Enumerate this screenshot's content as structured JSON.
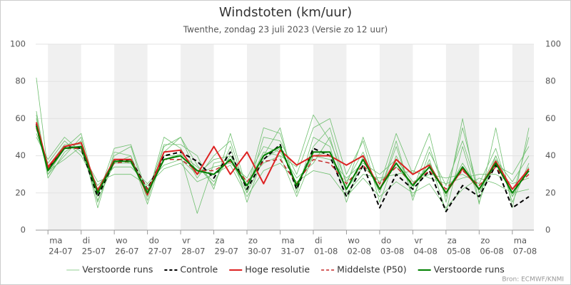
{
  "chart_data": {
    "type": "line",
    "title": "Windstoten (km/uur)",
    "subtitle": "Twenthe, zondag 23 juli 2023 (Versie zo 12 uur)",
    "credit": "Bron: ECMWF/KNMI",
    "xlim": [
      0.63,
      15.65
    ],
    "xticks": [
      {
        "value": 1,
        "label": "24-07"
      },
      {
        "value": 2,
        "label": "25-07"
      },
      {
        "value": 3,
        "label": "26-07"
      },
      {
        "value": 4,
        "label": "27-07"
      },
      {
        "value": 5,
        "label": "28-07"
      },
      {
        "value": 6,
        "label": "29-07"
      },
      {
        "value": 7,
        "label": "30-07"
      },
      {
        "value": 8,
        "label": "31-07"
      },
      {
        "value": 9,
        "label": "01-08"
      },
      {
        "value": 10,
        "label": "02-08"
      },
      {
        "value": 11,
        "label": "03-08"
      },
      {
        "value": 12,
        "label": "04-08"
      },
      {
        "value": 13,
        "label": "05-08"
      },
      {
        "value": 14,
        "label": "06-08"
      },
      {
        "value": 15,
        "label": "07-08"
      }
    ],
    "weekdays": [
      "ma",
      "di",
      "wo",
      "do",
      "vr",
      "za",
      "zo",
      "ma",
      "di",
      "wo",
      "do",
      "vr",
      "za",
      "zo",
      "ma"
    ],
    "ylim": [
      0,
      100
    ],
    "yticks": [
      0,
      20,
      40,
      60,
      80,
      100
    ],
    "grid": true,
    "legend": "bottom",
    "x": [
      0.65,
      1,
      1.5,
      2,
      2.5,
      3,
      3.5,
      4,
      4.5,
      5,
      5.5,
      6,
      6.5,
      7,
      7.5,
      8,
      8.5,
      9,
      9.5,
      10,
      10.5,
      11,
      11.5,
      12,
      12.5,
      13,
      13.5,
      14,
      14.5,
      15,
      15.5
    ],
    "series": [
      {
        "name": "Verstoorde runs",
        "color": "#6fbf6f",
        "width": 0.8,
        "runs": [
          [
            60,
            30,
            40,
            50,
            15,
            40,
            45,
            16,
            45,
            50,
            35,
            24,
            45,
            15,
            40,
            55,
            20,
            50,
            45,
            15,
            40,
            20,
            45,
            18,
            38,
            10,
            45,
            15,
            40,
            18,
            50
          ],
          [
            52,
            36,
            48,
            40,
            24,
            34,
            34,
            25,
            35,
            38,
            30,
            34,
            36,
            28,
            45,
            42,
            28,
            36,
            50,
            20,
            30,
            28,
            30,
            32,
            28,
            25,
            28,
            30,
            30,
            25,
            28
          ],
          [
            62,
            28,
            42,
            48,
            12,
            42,
            40,
            18,
            50,
            44,
            28,
            40,
            48,
            20,
            50,
            48,
            30,
            55,
            60,
            30,
            48,
            15,
            40,
            22,
            45,
            18,
            55,
            20,
            35,
            30,
            45
          ],
          [
            58,
            34,
            46,
            46,
            22,
            38,
            36,
            21,
            38,
            41,
            34,
            26,
            40,
            26,
            36,
            40,
            18,
            40,
            38,
            28,
            36,
            30,
            38,
            26,
            30,
            28,
            30,
            25,
            44,
            15,
            36
          ],
          [
            50,
            38,
            50,
            42,
            26,
            30,
            30,
            24,
            33,
            36,
            26,
            30,
            35,
            18,
            32,
            36,
            26,
            32,
            30,
            18,
            28,
            18,
            26,
            20,
            25,
            12,
            22,
            28,
            25,
            20,
            22
          ],
          [
            64,
            30,
            44,
            52,
            18,
            44,
            46,
            19,
            46,
            46,
            40,
            22,
            52,
            22,
            55,
            52,
            22,
            45,
            55,
            24,
            50,
            24,
            52,
            30,
            52,
            15,
            60,
            14,
            55,
            12,
            55
          ],
          [
            82,
            32,
            38,
            45,
            20,
            36,
            40,
            14,
            42,
            50,
            30,
            38,
            40,
            24,
            42,
            40,
            34,
            62,
            48,
            26,
            42,
            20,
            48,
            16,
            42,
            24,
            48,
            20,
            38,
            26,
            40
          ],
          [
            55,
            33,
            45,
            44,
            16,
            36,
            36,
            22,
            40,
            40,
            9,
            36,
            38,
            20,
            38,
            44,
            24,
            40,
            42,
            22,
            34,
            26,
            34,
            24,
            36,
            20,
            36,
            22,
            40,
            18,
            34
          ]
        ]
      },
      {
        "name": "Controle",
        "color": "#000000",
        "width": 2,
        "dash": true,
        "values": [
          57,
          33,
          45,
          44,
          18,
          37,
          38,
          22,
          40,
          42,
          37,
          28,
          42,
          22,
          38,
          46,
          22,
          44,
          40,
          18,
          35,
          12,
          30,
          22,
          32,
          10,
          24,
          18,
          35,
          12,
          18
        ]
      },
      {
        "name": "Hoge resolutie",
        "color": "#dd2222",
        "width": 2,
        "values": [
          58,
          34,
          45,
          47,
          21,
          38,
          38,
          19,
          42,
          43,
          30,
          45,
          30,
          42,
          25,
          43,
          35,
          40,
          40,
          35,
          40,
          22,
          38,
          30,
          35,
          20,
          33,
          22,
          37,
          22,
          33
        ]
      },
      {
        "name": "Middelste (P50)",
        "color": "#c62828",
        "width": 1.5,
        "dash": true,
        "values": [
          55,
          33,
          44,
          44,
          22,
          36,
          37,
          22,
          38,
          38,
          32,
          32,
          37,
          26,
          37,
          38,
          25,
          38,
          36,
          25,
          35,
          25,
          34,
          25,
          32,
          22,
          32,
          24,
          34,
          22,
          30
        ]
      },
      {
        "name": "Verstoorde runs",
        "color": "#008000",
        "width": 2,
        "values": [
          56,
          32,
          44,
          45,
          20,
          37,
          37,
          20,
          38,
          40,
          32,
          30,
          38,
          24,
          40,
          45,
          24,
          42,
          42,
          22,
          38,
          22,
          36,
          24,
          34,
          20,
          34,
          22,
          36,
          20,
          32
        ]
      }
    ]
  }
}
